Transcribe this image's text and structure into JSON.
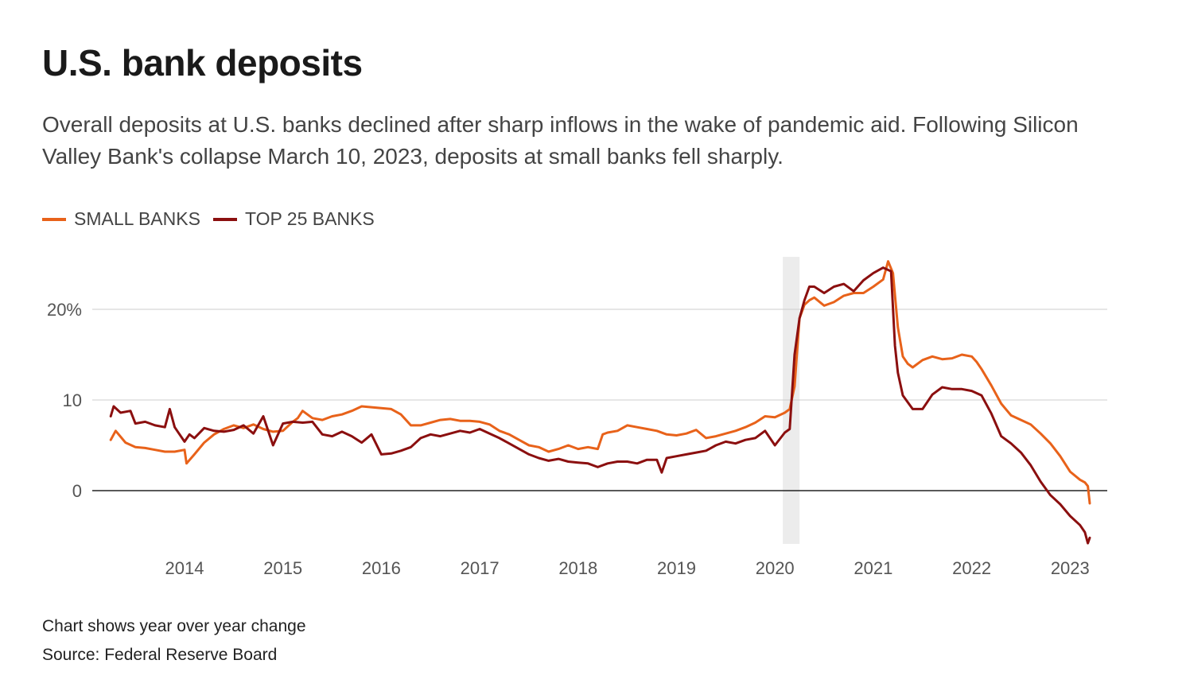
{
  "title": "U.S. bank deposits",
  "subtitle": "Overall deposits at U.S. banks declined after sharp inflows in the wake of pandemic aid. Following Silicon Valley Bank's collapse March 10, 2023, deposits at small banks fell sharply.",
  "footer": {
    "note": "Chart shows year over year change",
    "source": "Source: Federal Reserve Board"
  },
  "colors": {
    "small_banks": "#e8621a",
    "top25_banks": "#8b0f0f",
    "grid": "#cccccc",
    "zero_line": "#222222",
    "shade": "#ececec"
  },
  "chart_data": {
    "type": "line",
    "xlabel": "",
    "ylabel": "",
    "xlim": [
      2013.2,
      2023.3
    ],
    "ylim": [
      -6,
      26
    ],
    "grid": true,
    "legend": "top-left",
    "x_ticks": [
      2014,
      2015,
      2016,
      2017,
      2018,
      2019,
      2020,
      2021,
      2022,
      2023
    ],
    "x_tick_labels": [
      "2014",
      "2015",
      "2016",
      "2017",
      "2018",
      "2019",
      "2020",
      "2021",
      "2022",
      "2023"
    ],
    "y_ticks": [
      0,
      10,
      20
    ],
    "y_tick_labels": [
      "0",
      "10",
      "20%"
    ],
    "shaded_region": [
      2020.08,
      2020.25
    ],
    "series": [
      {
        "name": "SMALL BANKS",
        "x": [
          2013.25,
          2013.3,
          2013.4,
          2013.5,
          2013.6,
          2013.7,
          2013.8,
          2013.9,
          2014.0,
          2014.02,
          2014.1,
          2014.2,
          2014.3,
          2014.4,
          2014.5,
          2014.6,
          2014.7,
          2014.8,
          2014.9,
          2015.0,
          2015.1,
          2015.15,
          2015.2,
          2015.3,
          2015.4,
          2015.5,
          2015.6,
          2015.7,
          2015.8,
          2015.9,
          2016.0,
          2016.1,
          2016.2,
          2016.3,
          2016.4,
          2016.5,
          2016.6,
          2016.7,
          2016.8,
          2016.9,
          2017.0,
          2017.1,
          2017.2,
          2017.3,
          2017.4,
          2017.5,
          2017.6,
          2017.7,
          2017.8,
          2017.9,
          2018.0,
          2018.1,
          2018.2,
          2018.25,
          2018.3,
          2018.4,
          2018.5,
          2018.6,
          2018.7,
          2018.8,
          2018.9,
          2019.0,
          2019.1,
          2019.2,
          2019.3,
          2019.4,
          2019.5,
          2019.6,
          2019.7,
          2019.8,
          2019.9,
          2020.0,
          2020.1,
          2020.15,
          2020.2,
          2020.25,
          2020.3,
          2020.35,
          2020.4,
          2020.5,
          2020.6,
          2020.7,
          2020.8,
          2020.9,
          2021.0,
          2021.1,
          2021.15,
          2021.2,
          2021.25,
          2021.3,
          2021.35,
          2021.4,
          2021.5,
          2021.6,
          2021.7,
          2021.8,
          2021.9,
          2022.0,
          2022.05,
          2022.1,
          2022.2,
          2022.3,
          2022.4,
          2022.5,
          2022.6,
          2022.7,
          2022.8,
          2022.9,
          2023.0,
          2023.1,
          2023.15,
          2023.18,
          2023.2
        ],
        "values": [
          5.6,
          6.6,
          5.3,
          4.8,
          4.7,
          4.5,
          4.3,
          4.3,
          4.5,
          3.0,
          4.0,
          5.3,
          6.2,
          6.8,
          7.2,
          6.9,
          7.3,
          6.8,
          6.5,
          6.6,
          7.6,
          8.0,
          8.8,
          8.0,
          7.8,
          8.2,
          8.4,
          8.8,
          9.3,
          9.2,
          9.1,
          9.0,
          8.4,
          7.2,
          7.2,
          7.5,
          7.8,
          7.9,
          7.7,
          7.7,
          7.6,
          7.3,
          6.6,
          6.2,
          5.6,
          5.0,
          4.8,
          4.3,
          4.6,
          5.0,
          4.6,
          4.8,
          4.6,
          6.2,
          6.4,
          6.6,
          7.2,
          7.0,
          6.8,
          6.6,
          6.2,
          6.1,
          6.3,
          6.7,
          5.8,
          6.0,
          6.3,
          6.6,
          7.0,
          7.5,
          8.2,
          8.1,
          8.6,
          9.0,
          11.5,
          19.0,
          20.5,
          21.0,
          21.3,
          20.4,
          20.8,
          21.5,
          21.8,
          21.8,
          22.5,
          23.3,
          25.3,
          24.0,
          18.0,
          14.8,
          14.0,
          13.6,
          14.4,
          14.8,
          14.5,
          14.6,
          15.0,
          14.8,
          14.2,
          13.4,
          11.6,
          9.6,
          8.3,
          7.8,
          7.3,
          6.3,
          5.2,
          3.8,
          2.1,
          1.2,
          0.9,
          0.5,
          -1.4
        ],
        "color": "#e8621a"
      },
      {
        "name": "TOP 25 BANKS",
        "x": [
          2013.25,
          2013.28,
          2013.35,
          2013.45,
          2013.5,
          2013.6,
          2013.7,
          2013.8,
          2013.85,
          2013.9,
          2013.95,
          2014.0,
          2014.05,
          2014.1,
          2014.2,
          2014.3,
          2014.4,
          2014.5,
          2014.6,
          2014.7,
          2014.8,
          2014.9,
          2015.0,
          2015.1,
          2015.2,
          2015.3,
          2015.4,
          2015.5,
          2015.6,
          2015.7,
          2015.8,
          2015.9,
          2016.0,
          2016.1,
          2016.2,
          2016.3,
          2016.4,
          2016.5,
          2016.6,
          2016.7,
          2016.8,
          2016.9,
          2017.0,
          2017.1,
          2017.2,
          2017.3,
          2017.4,
          2017.5,
          2017.6,
          2017.7,
          2017.8,
          2017.9,
          2018.0,
          2018.1,
          2018.2,
          2018.3,
          2018.4,
          2018.5,
          2018.6,
          2018.7,
          2018.8,
          2018.85,
          2018.9,
          2019.0,
          2019.1,
          2019.2,
          2019.3,
          2019.4,
          2019.5,
          2019.6,
          2019.7,
          2019.8,
          2019.9,
          2020.0,
          2020.1,
          2020.15,
          2020.2,
          2020.25,
          2020.3,
          2020.35,
          2020.4,
          2020.5,
          2020.6,
          2020.7,
          2020.8,
          2020.9,
          2021.0,
          2021.1,
          2021.18,
          2021.22,
          2021.25,
          2021.3,
          2021.4,
          2021.5,
          2021.6,
          2021.7,
          2021.8,
          2021.9,
          2022.0,
          2022.1,
          2022.2,
          2022.3,
          2022.4,
          2022.5,
          2022.6,
          2022.7,
          2022.8,
          2022.9,
          2023.0,
          2023.1,
          2023.15,
          2023.18,
          2023.2
        ],
        "values": [
          8.2,
          9.3,
          8.6,
          8.8,
          7.4,
          7.6,
          7.2,
          7.0,
          9.0,
          7.0,
          6.2,
          5.4,
          6.2,
          5.8,
          6.9,
          6.6,
          6.5,
          6.7,
          7.2,
          6.3,
          8.2,
          5.0,
          7.4,
          7.6,
          7.5,
          7.6,
          6.2,
          6.0,
          6.5,
          6.0,
          5.3,
          6.2,
          4.0,
          4.1,
          4.4,
          4.8,
          5.8,
          6.2,
          6.0,
          6.3,
          6.6,
          6.4,
          6.8,
          6.3,
          5.8,
          5.2,
          4.6,
          4.0,
          3.6,
          3.3,
          3.5,
          3.2,
          3.1,
          3.0,
          2.6,
          3.0,
          3.2,
          3.2,
          3.0,
          3.4,
          3.4,
          2.0,
          3.6,
          3.8,
          4.0,
          4.2,
          4.4,
          5.0,
          5.4,
          5.2,
          5.6,
          5.8,
          6.6,
          5.0,
          6.4,
          6.8,
          15.0,
          19.0,
          21.0,
          22.5,
          22.5,
          21.8,
          22.5,
          22.8,
          22.0,
          23.2,
          24.0,
          24.6,
          24.2,
          16.0,
          13.0,
          10.5,
          9.0,
          9.0,
          10.6,
          11.4,
          11.2,
          11.2,
          11.0,
          10.5,
          8.5,
          6.0,
          5.2,
          4.2,
          2.8,
          1.0,
          -0.5,
          -1.5,
          -2.8,
          -3.8,
          -4.6,
          -5.8,
          -5.2
        ],
        "color": "#8b0f0f"
      }
    ]
  }
}
